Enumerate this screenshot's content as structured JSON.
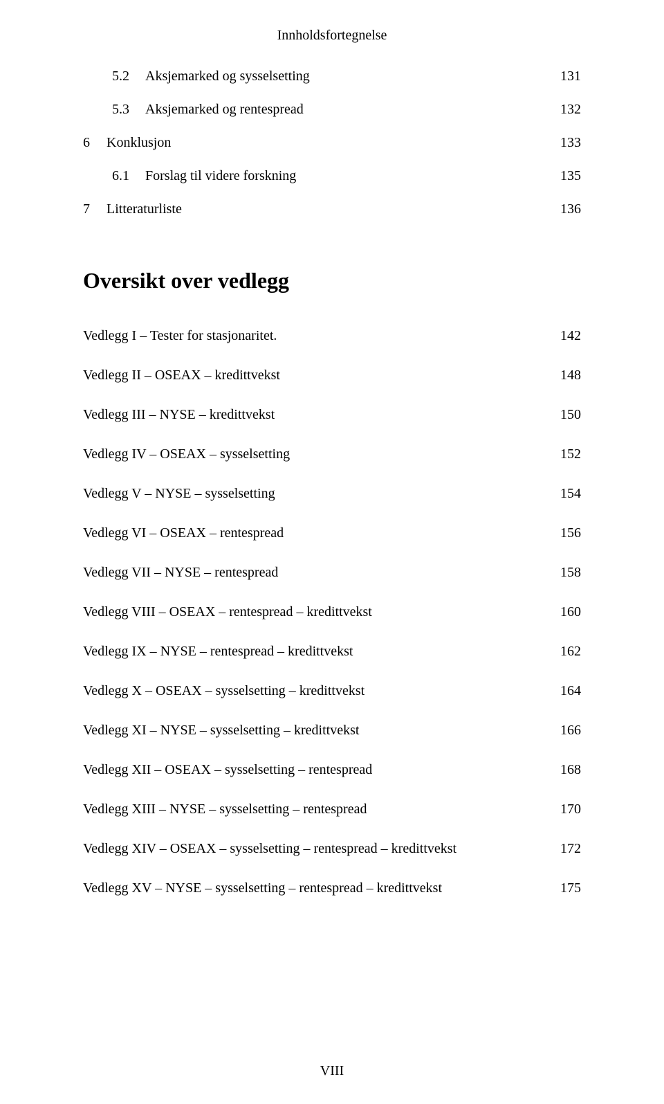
{
  "header": {
    "title": "Innholdsfortegnelse"
  },
  "toc": [
    {
      "indent": 1,
      "num": "5.2",
      "label": "Aksjemarked og sysselsetting",
      "page": "131"
    },
    {
      "indent": 1,
      "num": "5.3",
      "label": "Aksjemarked og rentespread",
      "page": "132"
    },
    {
      "indent": 0,
      "num": "6",
      "label": "Konklusjon",
      "page": "133"
    },
    {
      "indent": 1,
      "num": "6.1",
      "label": "Forslag til videre forskning",
      "page": "135"
    },
    {
      "indent": 0,
      "num": "7",
      "label": "Litteraturliste",
      "page": "136"
    }
  ],
  "sectionHeading": "Oversikt over vedlegg",
  "vedlegg": [
    {
      "label": "Vedlegg I – Tester for stasjonaritet.",
      "page": "142"
    },
    {
      "label": "Vedlegg II – OSEAX – kredittvekst",
      "page": "148"
    },
    {
      "label": "Vedlegg III – NYSE – kredittvekst",
      "page": "150"
    },
    {
      "label": "Vedlegg IV – OSEAX – sysselsetting",
      "page": "152"
    },
    {
      "label": "Vedlegg V – NYSE – sysselsetting",
      "page": "154"
    },
    {
      "label": "Vedlegg VI – OSEAX – rentespread",
      "page": "156"
    },
    {
      "label": "Vedlegg VII – NYSE – rentespread",
      "page": "158"
    },
    {
      "label": "Vedlegg VIII – OSEAX – rentespread – kredittvekst",
      "page": "160"
    },
    {
      "label": "Vedlegg IX – NYSE – rentespread – kredittvekst",
      "page": "162"
    },
    {
      "label": "Vedlegg X – OSEAX – sysselsetting – kredittvekst",
      "page": "164"
    },
    {
      "label": "Vedlegg XI – NYSE – sysselsetting – kredittvekst",
      "page": "166"
    },
    {
      "label": "Vedlegg XII – OSEAX – sysselsetting – rentespread",
      "page": "168"
    },
    {
      "label": "Vedlegg XIII – NYSE – sysselsetting – rentespread",
      "page": "170"
    },
    {
      "label": "Vedlegg XIV – OSEAX – sysselsetting – rentespread – kredittvekst",
      "page": "172"
    },
    {
      "label": "Vedlegg XV – NYSE – sysselsetting – rentespread – kredittvekst",
      "page": "175"
    }
  ],
  "footer": {
    "pageNumber": "VIII"
  }
}
